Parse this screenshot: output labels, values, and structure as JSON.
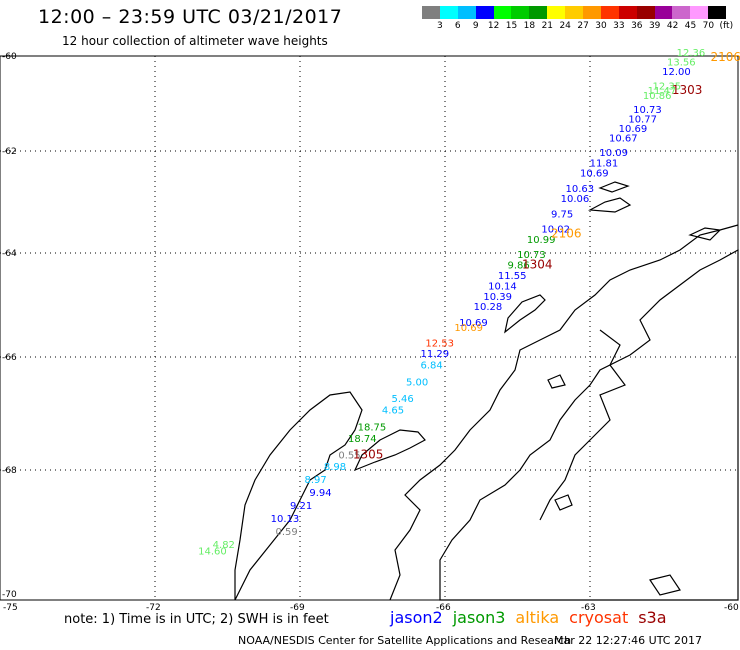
{
  "title": "12:00 – 23:59 UTC 03/21/2017",
  "subtitle": "12 hour collection of altimeter wave heights",
  "colorbar": {
    "colors": [
      "#7f7f7f",
      "#00ffff",
      "#00bfff",
      "#0000ff",
      "#00ff00",
      "#00cc00",
      "#009900",
      "#ffff00",
      "#ffcc00",
      "#ff9900",
      "#ff3300",
      "#cc0000",
      "#990000",
      "#990099",
      "#cc66cc",
      "#ff99ff",
      "#000000"
    ],
    "ticks": [
      "3",
      "6",
      "9",
      "12",
      "15",
      "18",
      "21",
      "24",
      "27",
      "30",
      "33",
      "36",
      "39",
      "42",
      "45",
      "70",
      "(ft)"
    ]
  },
  "axes": {
    "lat_labels": [
      "-60",
      "-62",
      "-64",
      "-66",
      "-68",
      "-70"
    ],
    "lon_labels": [
      "-75",
      "-72",
      "-69",
      "-66",
      "-63",
      "-60"
    ]
  },
  "observations": [
    {
      "text": "12.36",
      "lon": -61.0,
      "lat": -60.0,
      "color": "#66ee66"
    },
    {
      "text": "13.56",
      "lon": -61.2,
      "lat": -60.2,
      "color": "#66ee66"
    },
    {
      "text": "12.00",
      "lon": -61.3,
      "lat": -60.4,
      "color": "#0000ff"
    },
    {
      "text": "12.35",
      "lon": -61.5,
      "lat": -60.7,
      "color": "#66ee66"
    },
    {
      "text": "11.47",
      "lon": -61.6,
      "lat": -60.8,
      "color": "#66ee66"
    },
    {
      "text": "10.86",
      "lon": -61.7,
      "lat": -60.9,
      "color": "#66ee66"
    },
    {
      "text": "10.73",
      "lon": -61.9,
      "lat": -61.2,
      "color": "#0000ff"
    },
    {
      "text": "10.77",
      "lon": -62.0,
      "lat": -61.4,
      "color": "#0000ff"
    },
    {
      "text": "10.69",
      "lon": -62.2,
      "lat": -61.6,
      "color": "#0000ff"
    },
    {
      "text": "10.67",
      "lon": -62.4,
      "lat": -61.8,
      "color": "#0000ff"
    },
    {
      "text": "10.09",
      "lon": -62.6,
      "lat": -62.1,
      "color": "#0000ff"
    },
    {
      "text": "11.81",
      "lon": -62.8,
      "lat": -62.3,
      "color": "#0000ff"
    },
    {
      "text": "10.69",
      "lon": -63.0,
      "lat": -62.5,
      "color": "#0000ff"
    },
    {
      "text": "10.63",
      "lon": -63.3,
      "lat": -62.8,
      "color": "#0000ff"
    },
    {
      "text": "10.06",
      "lon": -63.4,
      "lat": -63.0,
      "color": "#0000ff"
    },
    {
      "text": "9.75",
      "lon": -63.6,
      "lat": -63.3,
      "color": "#0000ff"
    },
    {
      "text": "10.02",
      "lon": -63.8,
      "lat": -63.6,
      "color": "#0000ff"
    },
    {
      "text": "10.99",
      "lon": -64.1,
      "lat": -63.8,
      "color": "#009900"
    },
    {
      "text": "10.73",
      "lon": -64.3,
      "lat": -64.1,
      "color": "#009900"
    },
    {
      "text": "9.86",
      "lon": -64.5,
      "lat": -64.3,
      "color": "#009900"
    },
    {
      "text": "11.55",
      "lon": -64.7,
      "lat": -64.5,
      "color": "#0000ff"
    },
    {
      "text": "10.14",
      "lon": -64.9,
      "lat": -64.7,
      "color": "#0000ff"
    },
    {
      "text": "10.39",
      "lon": -65.0,
      "lat": -64.9,
      "color": "#0000ff"
    },
    {
      "text": "10.28",
      "lon": -65.2,
      "lat": -65.1,
      "color": "#0000ff"
    },
    {
      "text": "10.69",
      "lon": -65.5,
      "lat": -65.4,
      "color": "#0000ff"
    },
    {
      "text": "10.69",
      "lon": -65.6,
      "lat": -65.5,
      "color": "#ff9900"
    },
    {
      "text": "12.53",
      "lon": -66.2,
      "lat": -65.8,
      "color": "#ff3300"
    },
    {
      "text": "11.29",
      "lon": -66.3,
      "lat": -66.0,
      "color": "#0000ff"
    },
    {
      "text": "6.84",
      "lon": -66.3,
      "lat": -66.2,
      "color": "#00bfff"
    },
    {
      "text": "5.00",
      "lon": -66.6,
      "lat": -66.5,
      "color": "#00bfff"
    },
    {
      "text": "5.46",
      "lon": -66.9,
      "lat": -66.8,
      "color": "#00bfff"
    },
    {
      "text": "4.65",
      "lon": -67.1,
      "lat": -67.0,
      "color": "#00bfff"
    },
    {
      "text": "18.75",
      "lon": -67.6,
      "lat": -67.3,
      "color": "#009900"
    },
    {
      "text": "18.74",
      "lon": -67.8,
      "lat": -67.5,
      "color": "#009900"
    },
    {
      "text": "0.55",
      "lon": -68.0,
      "lat": -67.8,
      "color": "#7f7f7f"
    },
    {
      "text": "8.98",
      "lon": -68.3,
      "lat": -68.0,
      "color": "#00bfff"
    },
    {
      "text": "8.97",
      "lon": -68.7,
      "lat": -68.2,
      "color": "#00bfff"
    },
    {
      "text": "9.94",
      "lon": -68.6,
      "lat": -68.4,
      "color": "#0000ff"
    },
    {
      "text": "9.21",
      "lon": -69.0,
      "lat": -68.6,
      "color": "#0000ff"
    },
    {
      "text": "10.13",
      "lon": -69.4,
      "lat": -68.8,
      "color": "#0000ff"
    },
    {
      "text": "0.59",
      "lon": -69.3,
      "lat": -69.0,
      "color": "#7f7f7f"
    },
    {
      "text": "4.82",
      "lon": -70.6,
      "lat": -69.2,
      "color": "#66ee66"
    },
    {
      "text": "14.60",
      "lon": -70.9,
      "lat": -69.3,
      "color": "#66ee66"
    }
  ],
  "pass_times": [
    {
      "text": "2106",
      "lon": -60.3,
      "lat": -60.1,
      "color": "#ff9900"
    },
    {
      "text": "1303",
      "lon": -61.1,
      "lat": -60.8,
      "color": "#990000"
    },
    {
      "text": "2106",
      "lon": -63.6,
      "lat": -63.7,
      "color": "#ff9900"
    },
    {
      "text": "1304",
      "lon": -64.2,
      "lat": -64.3,
      "color": "#990000"
    },
    {
      "text": "1305",
      "lon": -67.7,
      "lat": -67.8,
      "color": "#990000"
    }
  ],
  "note": "note:  1) Time is in UTC;  2) SWH is in feet",
  "legend": [
    {
      "name": "jason2",
      "color": "#0000ff"
    },
    {
      "name": "jason3",
      "color": "#009900"
    },
    {
      "name": "altika",
      "color": "#ff9900"
    },
    {
      "name": "cryosat",
      "color": "#ff3300"
    },
    {
      "name": "s3a",
      "color": "#990000"
    }
  ],
  "footer": {
    "credit": "NOAA/NESDIS Center for Satellite Applications and Research",
    "timestamp": "Mar 22 12:27:46 UTC 2017"
  }
}
